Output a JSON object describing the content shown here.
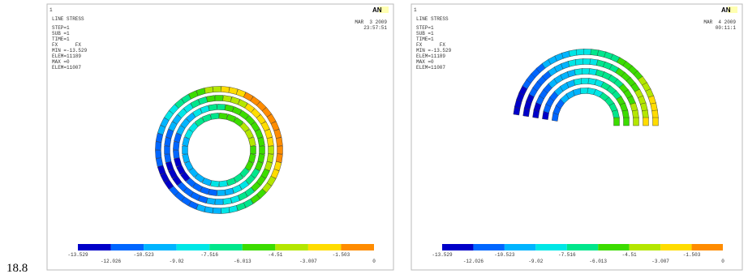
{
  "caption": "18.8",
  "panels": [
    {
      "corner": "1",
      "logo": "AN",
      "date": "MAR  3 2009",
      "time": "23:57:51",
      "info": [
        "LINE STRESS",
        "STEP=1",
        "SUB =1",
        "TIME=1",
        "FX      FX",
        "MIN =-13.529",
        "ELEM=11189",
        "MAX =0",
        "ELEM=11007"
      ],
      "legend": {
        "colors": [
          "#0000c8",
          "#0066ff",
          "#00b4ff",
          "#00e6e6",
          "#00e68c",
          "#3cdc00",
          "#b4e600",
          "#ffdc00",
          "#ff8c00",
          "#e60000"
        ],
        "upper": [
          "-13.529",
          "-10.523",
          "-7.516",
          "-4.51",
          "-1.503"
        ],
        "lower": [
          "-12.026",
          "-9.02",
          "-6.013",
          "-3.007",
          "0"
        ]
      }
    },
    {
      "corner": "1",
      "logo": "AN",
      "date": "MAR  4 2009",
      "time": "00:11:1",
      "info": [
        "LINE STRESS",
        "STEP=1",
        "SUB =1",
        "TIME=1",
        "FX      FX",
        "MIN =-13.529",
        "ELEM=11189",
        "MAX =0",
        "ELEM=11007"
      ],
      "legend": {
        "colors": [
          "#0000c8",
          "#0066ff",
          "#00b4ff",
          "#00e6e6",
          "#00e68c",
          "#3cdc00",
          "#b4e600",
          "#ffdc00",
          "#ff8c00",
          "#e60000"
        ],
        "upper": [
          "-13.529",
          "-10.523",
          "-7.516",
          "-4.51",
          "-1.503"
        ],
        "lower": [
          "-12.026",
          "-9.02",
          "-6.013",
          "-3.007",
          "0"
        ]
      }
    }
  ]
}
